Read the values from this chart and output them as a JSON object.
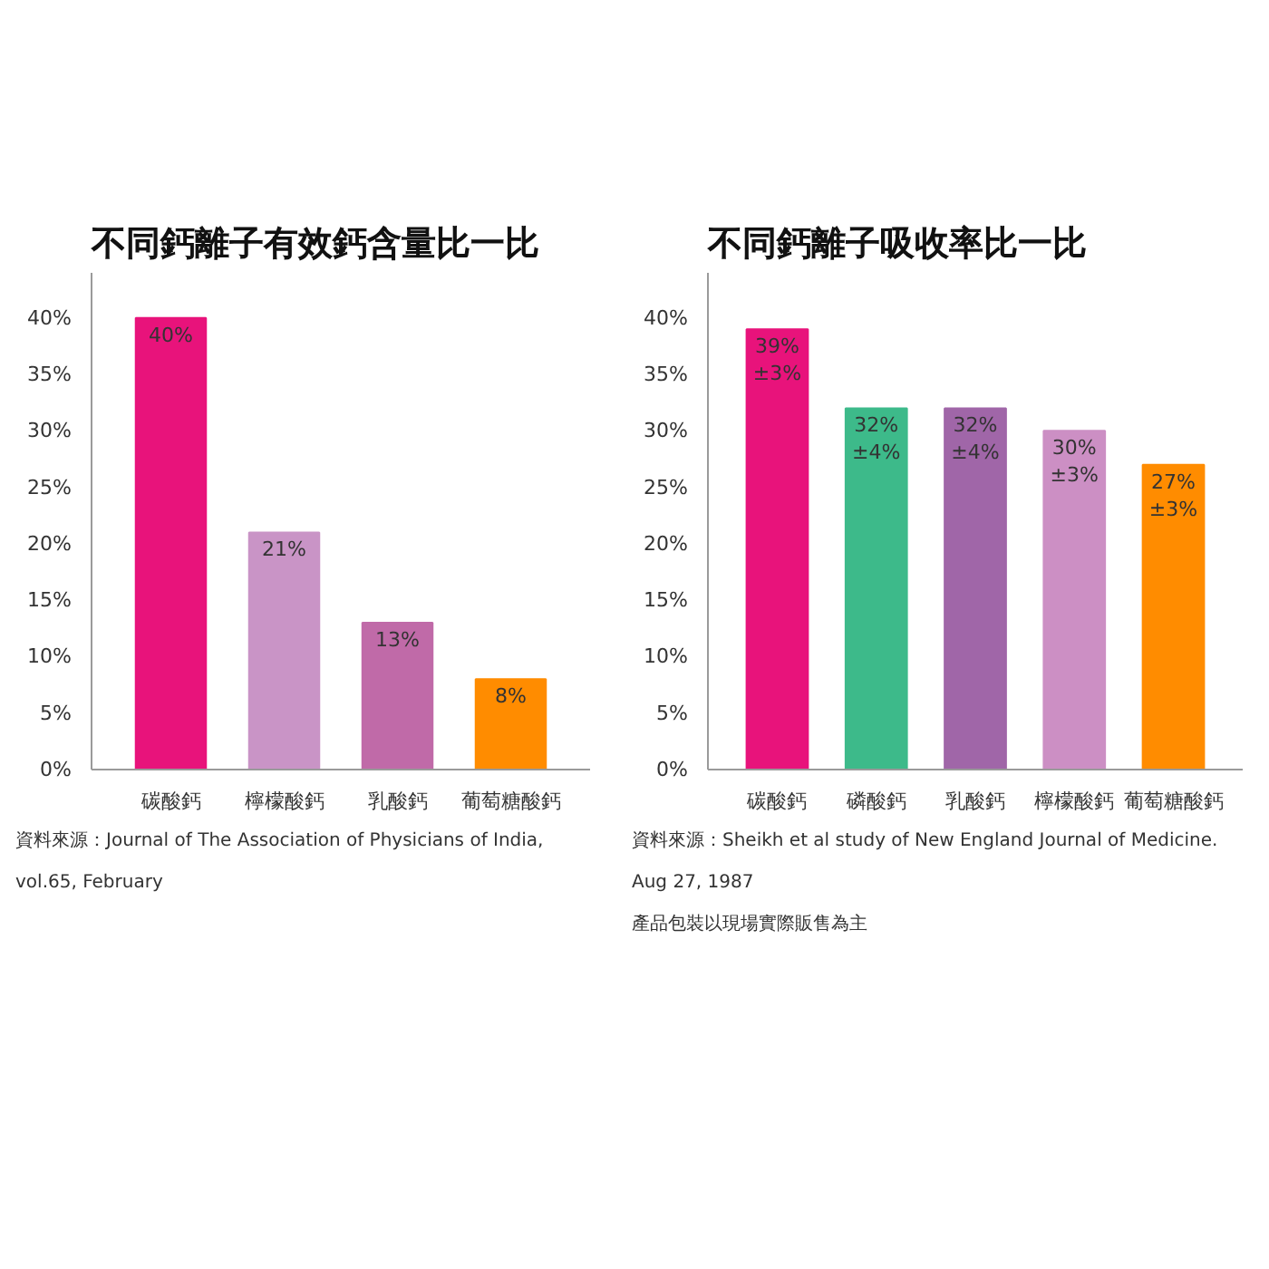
{
  "chart_data": [
    {
      "type": "bar",
      "title": "不同鈣離子有效鈣含量比一比",
      "categories": [
        "碳酸鈣",
        "檸檬酸鈣",
        "乳酸鈣",
        "葡萄糖酸鈣"
      ],
      "values": [
        40,
        21,
        13,
        8
      ],
      "colors": [
        "#e8137b",
        "#c994c6",
        "#c06aa8",
        "#ff8c00"
      ],
      "value_labels": [
        "40%",
        "21%",
        "13%",
        "8%"
      ],
      "ylim": [
        0,
        44
      ],
      "yticks": [
        {
          "value": 0,
          "label": "0%"
        },
        {
          "value": 5,
          "label": "5%"
        },
        {
          "value": 10,
          "label": "10%"
        },
        {
          "value": 15,
          "label": "15%"
        },
        {
          "value": 20,
          "label": "20%"
        },
        {
          "value": 25,
          "label": "25%"
        },
        {
          "value": 30,
          "label": "30%"
        },
        {
          "value": 35,
          "label": "35%"
        },
        {
          "value": 40,
          "label": "40%"
        }
      ],
      "grid": false,
      "annotations": [
        "資料來源：Journal of The Association of Physicians of India,\nvol.65, February"
      ]
    },
    {
      "type": "bar",
      "title": "不同鈣離子吸收率比一比",
      "categories": [
        "碳酸鈣",
        "磷酸鈣",
        "乳酸鈣",
        "檸檬酸鈣",
        "葡萄糖酸鈣"
      ],
      "values": [
        39,
        32,
        32,
        30,
        27
      ],
      "colors": [
        "#e8137b",
        "#3dba8a",
        "#a066a8",
        "#cc8fc4",
        "#ff8c00"
      ],
      "value_labels": [
        "39%\n±3%",
        "32%\n±4%",
        "32%\n±4%",
        "30%\n±3%",
        "27%\n±3%"
      ],
      "ylim": [
        0,
        44
      ],
      "yticks": [
        {
          "value": 0,
          "label": "0%"
        },
        {
          "value": 5,
          "label": "5%"
        },
        {
          "value": 10,
          "label": "10%"
        },
        {
          "value": 15,
          "label": "15%"
        },
        {
          "value": 20,
          "label": "20%"
        },
        {
          "value": 25,
          "label": "25%"
        },
        {
          "value": 30,
          "label": "30%"
        },
        {
          "value": 35,
          "label": "35%"
        },
        {
          "value": 40,
          "label": "40%"
        }
      ],
      "grid": false,
      "annotations": [
        "資料來源：Sheikh et al study of New England Journal of Medicine.\nAug 27, 1987",
        "產品包裝以現場實際販售為主"
      ]
    }
  ]
}
